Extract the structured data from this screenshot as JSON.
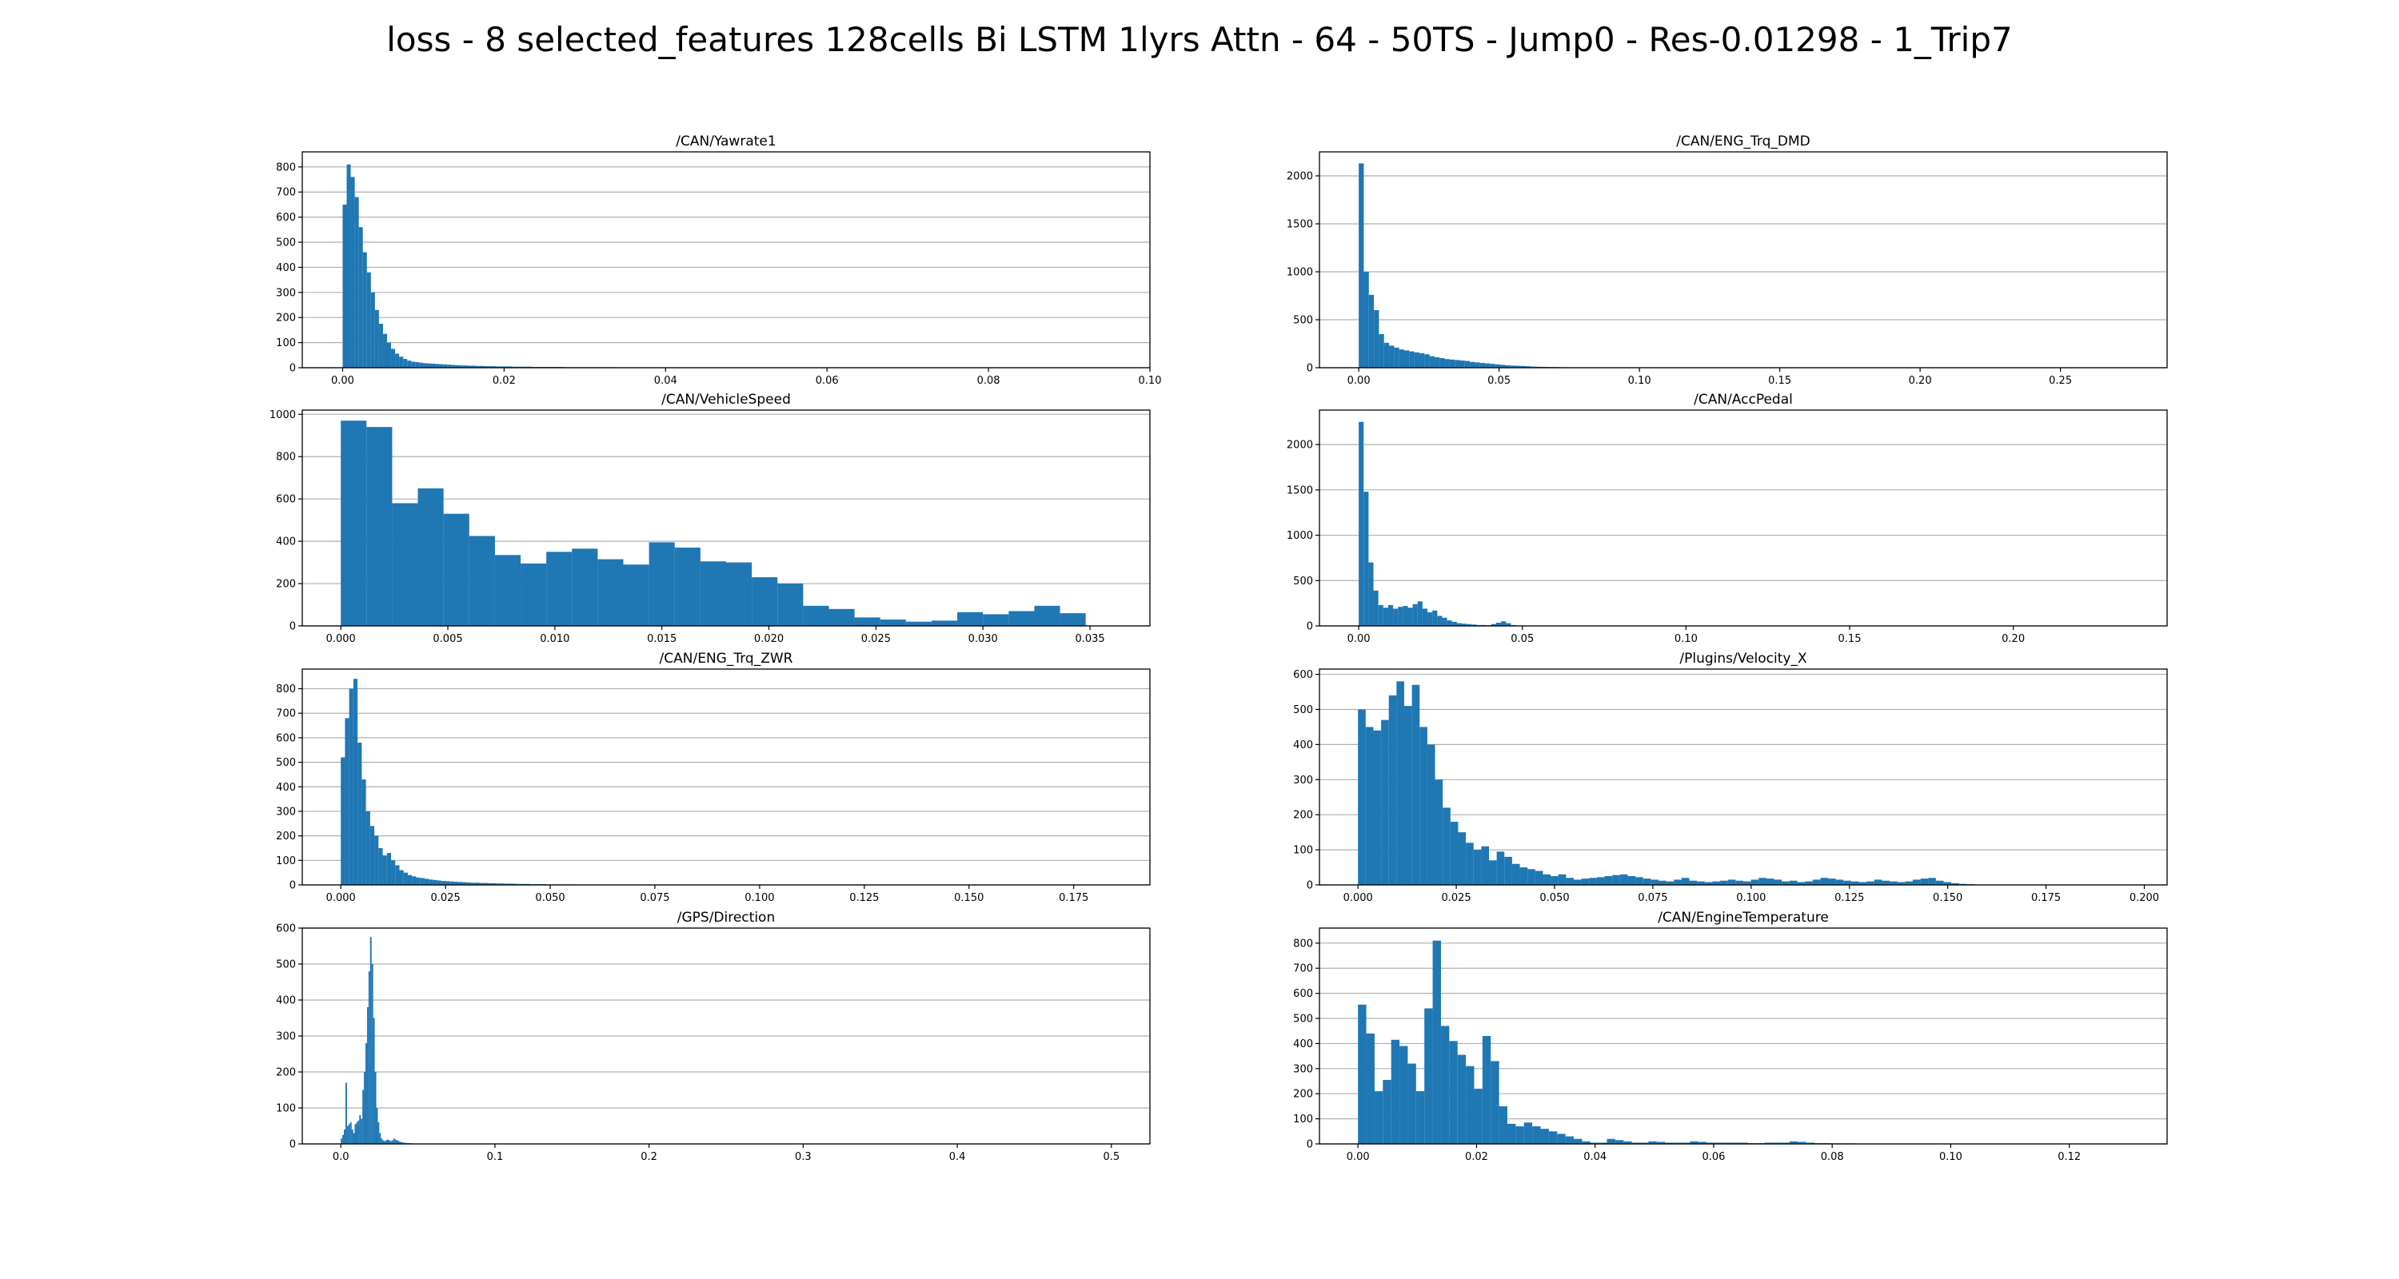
{
  "figure": {
    "title": "loss - 8 selected_features 128cells Bi LSTM 1lyrs Attn - 64 - 50TS - Jump0 - Res-0.01298 - 1_Trip7"
  },
  "colors": {
    "bar": "#1f77b4",
    "grid": "#b0b0b0",
    "axis": "#000000"
  },
  "chart_data": [
    {
      "type": "bar",
      "title": "/CAN/Yawrate1",
      "grid": "horizontal",
      "xlim": [
        -0.005,
        0.1
      ],
      "ylim": [
        0,
        860
      ],
      "xticks": [
        0.0,
        0.02,
        0.04,
        0.06,
        0.08,
        0.1
      ],
      "xtick_labels": [
        "0.00",
        "0.02",
        "0.04",
        "0.06",
        "0.08",
        "0.10"
      ],
      "yticks": [
        0,
        100,
        200,
        300,
        400,
        500,
        600,
        700,
        800
      ],
      "bin_start": 0.0,
      "bin_width": 0.0005,
      "values": [
        650,
        810,
        760,
        680,
        560,
        460,
        380,
        300,
        230,
        175,
        135,
        100,
        75,
        56,
        44,
        35,
        28,
        24,
        22,
        20,
        18,
        17,
        16,
        15,
        14,
        13,
        12,
        11,
        10,
        9,
        9,
        8,
        8,
        7,
        7,
        6,
        6,
        6,
        5,
        5,
        5,
        5,
        4,
        4,
        4,
        4,
        4,
        3,
        3,
        3,
        3,
        3,
        3,
        3,
        3,
        2,
        2,
        2,
        2,
        2,
        2,
        2,
        2,
        2,
        2,
        2,
        2,
        2,
        1,
        1,
        1,
        1,
        1,
        1,
        1,
        1,
        1,
        1,
        1,
        1,
        1,
        1,
        1,
        1,
        1,
        1,
        1,
        1,
        1,
        1,
        1,
        1,
        1,
        1,
        1,
        1,
        1,
        1,
        1,
        1,
        0,
        0,
        0,
        0,
        0,
        0,
        0,
        0,
        0,
        0,
        0,
        0,
        0,
        0,
        0,
        0,
        0,
        0,
        0,
        0,
        1,
        1,
        0,
        0,
        0,
        1,
        0,
        0,
        0,
        0,
        1,
        0,
        0,
        0,
        0,
        1
      ]
    },
    {
      "type": "bar",
      "title": "/CAN/ENG_Trq_DMD",
      "grid": "horizontal",
      "xlim": [
        -0.014,
        0.288
      ],
      "ylim": [
        0,
        2250
      ],
      "xticks": [
        0.0,
        0.05,
        0.1,
        0.15,
        0.2,
        0.25
      ],
      "xtick_labels": [
        "0.00",
        "0.05",
        "0.10",
        "0.15",
        "0.20",
        "0.25"
      ],
      "yticks": [
        0,
        500,
        1000,
        1500,
        2000
      ],
      "bin_start": 0.0,
      "bin_width": 0.0018,
      "values": [
        2130,
        1000,
        760,
        600,
        350,
        260,
        230,
        210,
        190,
        180,
        170,
        160,
        150,
        140,
        120,
        110,
        100,
        90,
        85,
        80,
        75,
        70,
        60,
        55,
        50,
        45,
        40,
        35,
        30,
        25,
        22,
        20,
        18,
        15,
        12,
        10,
        9,
        8,
        7,
        6,
        5,
        5,
        4,
        4,
        3,
        3,
        3,
        2,
        2,
        2,
        2,
        1,
        1,
        1,
        1,
        1,
        1,
        1,
        1,
        1
      ]
    },
    {
      "type": "bar",
      "title": "/CAN/VehicleSpeed",
      "grid": "horizontal",
      "xlim": [
        -0.0018,
        0.0378
      ],
      "ylim": [
        0,
        1020
      ],
      "xticks": [
        0.0,
        0.005,
        0.01,
        0.015,
        0.02,
        0.025,
        0.03,
        0.035
      ],
      "xtick_labels": [
        "0.000",
        "0.005",
        "0.010",
        "0.015",
        "0.020",
        "0.025",
        "0.030",
        "0.035"
      ],
      "yticks": [
        0,
        200,
        400,
        600,
        800,
        1000
      ],
      "bin_start": 0.0,
      "bin_width": 0.0012,
      "values": [
        970,
        940,
        580,
        650,
        530,
        425,
        335,
        295,
        350,
        365,
        315,
        290,
        395,
        370,
        305,
        300,
        230,
        200,
        95,
        80,
        40,
        30,
        20,
        25,
        65,
        55,
        70,
        95,
        60
      ]
    },
    {
      "type": "bar",
      "title": "/CAN/AccPedal",
      "grid": "horizontal",
      "xlim": [
        -0.012,
        0.247
      ],
      "ylim": [
        0,
        2380
      ],
      "xticks": [
        0.0,
        0.05,
        0.1,
        0.15,
        0.2
      ],
      "xtick_labels": [
        "0.00",
        "0.05",
        "0.10",
        "0.15",
        "0.20"
      ],
      "yticks": [
        0,
        500,
        1000,
        1500,
        2000
      ],
      "bin_start": 0.0,
      "bin_width": 0.0015,
      "values": [
        2250,
        1480,
        700,
        390,
        230,
        200,
        230,
        190,
        210,
        220,
        200,
        240,
        270,
        190,
        150,
        170,
        110,
        90,
        60,
        45,
        30,
        25,
        20,
        15,
        10,
        10,
        8,
        20,
        35,
        50,
        30,
        10,
        5,
        3,
        3,
        2,
        2,
        1,
        1,
        1
      ]
    },
    {
      "type": "bar",
      "title": "/CAN/ENG_Trq_ZWR",
      "grid": "horizontal",
      "xlim": [
        -0.0092,
        0.1932
      ],
      "ylim": [
        0,
        880
      ],
      "xticks": [
        0.0,
        0.025,
        0.05,
        0.075,
        0.1,
        0.125,
        0.15,
        0.175
      ],
      "xtick_labels": [
        "0.000",
        "0.025",
        "0.050",
        "0.075",
        "0.100",
        "0.125",
        "0.150",
        "0.175"
      ],
      "yticks": [
        0,
        100,
        200,
        300,
        400,
        500,
        600,
        700,
        800
      ],
      "bin_start": 0.0,
      "bin_width": 0.001,
      "values": [
        520,
        680,
        800,
        840,
        580,
        430,
        300,
        240,
        200,
        150,
        120,
        130,
        100,
        80,
        60,
        50,
        40,
        35,
        30,
        28,
        25,
        22,
        20,
        18,
        16,
        15,
        14,
        13,
        12,
        11,
        10,
        9,
        9,
        8,
        8,
        7,
        7,
        6,
        6,
        5,
        5,
        5,
        4,
        4,
        4,
        3,
        3,
        3,
        3,
        2,
        2,
        2,
        2,
        2,
        2,
        2,
        1,
        1,
        1,
        1,
        1,
        1,
        1,
        1,
        1,
        1,
        1,
        1,
        1,
        1,
        1,
        1,
        1,
        1,
        1,
        1,
        1,
        1,
        1,
        1
      ]
    },
    {
      "type": "bar",
      "title": "/Plugins/Velocity_X",
      "grid": "horizontal",
      "xlim": [
        -0.0098,
        0.2058
      ],
      "ylim": [
        0,
        615
      ],
      "xticks": [
        0.0,
        0.025,
        0.05,
        0.075,
        0.1,
        0.125,
        0.15,
        0.175,
        0.2
      ],
      "xtick_labels": [
        "0.000",
        "0.025",
        "0.050",
        "0.075",
        "0.100",
        "0.125",
        "0.150",
        "0.175",
        "0.200"
      ],
      "yticks": [
        0,
        100,
        200,
        300,
        400,
        500,
        600
      ],
      "bin_start": 0.0,
      "bin_width": 0.00196,
      "values": [
        500,
        450,
        440,
        470,
        540,
        580,
        510,
        570,
        450,
        400,
        300,
        220,
        180,
        150,
        120,
        100,
        110,
        70,
        95,
        80,
        60,
        50,
        45,
        40,
        30,
        25,
        30,
        20,
        15,
        18,
        20,
        22,
        25,
        28,
        30,
        25,
        22,
        18,
        15,
        12,
        10,
        15,
        20,
        12,
        10,
        8,
        10,
        12,
        15,
        12,
        10,
        15,
        20,
        18,
        15,
        10,
        12,
        8,
        10,
        15,
        20,
        18,
        15,
        12,
        10,
        8,
        10,
        15,
        12,
        10,
        8,
        10,
        15,
        18,
        20,
        12,
        8,
        5,
        3,
        2
      ]
    },
    {
      "type": "bar",
      "title": "/GPS/Direction",
      "grid": "horizontal",
      "xlim": [
        -0.025,
        0.525
      ],
      "ylim": [
        0,
        600
      ],
      "xticks": [
        0.0,
        0.1,
        0.2,
        0.3,
        0.4,
        0.5
      ],
      "xtick_labels": [
        "0.0",
        "0.1",
        "0.2",
        "0.3",
        "0.4",
        "0.5"
      ],
      "yticks": [
        0,
        100,
        200,
        300,
        400,
        500,
        600
      ],
      "bin_start": 0.0,
      "bin_width": 0.001,
      "values": [
        15,
        25,
        40,
        170,
        50,
        55,
        60,
        40,
        30,
        55,
        60,
        65,
        80,
        70,
        150,
        200,
        280,
        380,
        480,
        575,
        500,
        350,
        200,
        100,
        60,
        30,
        15,
        10,
        8,
        10,
        12,
        10,
        8,
        10,
        15,
        12,
        10,
        8,
        6,
        5,
        4,
        3,
        3,
        2,
        2,
        2,
        1,
        1,
        1,
        1
      ]
    },
    {
      "type": "bar",
      "title": "/CAN/EngineTemperature",
      "grid": "horizontal",
      "xlim": [
        -0.0065,
        0.1365
      ],
      "ylim": [
        0,
        860
      ],
      "xticks": [
        0.0,
        0.02,
        0.04,
        0.06,
        0.08,
        0.1,
        0.12
      ],
      "xtick_labels": [
        "0.00",
        "0.02",
        "0.04",
        "0.06",
        "0.08",
        "0.10",
        "0.12"
      ],
      "yticks": [
        0,
        100,
        200,
        300,
        400,
        500,
        600,
        700,
        800
      ],
      "bin_start": 0.0,
      "bin_width": 0.0014,
      "values": [
        555,
        440,
        210,
        255,
        415,
        390,
        320,
        210,
        540,
        810,
        470,
        410,
        355,
        310,
        220,
        430,
        330,
        150,
        80,
        70,
        85,
        70,
        60,
        50,
        40,
        30,
        20,
        10,
        5,
        5,
        20,
        15,
        10,
        5,
        5,
        10,
        8,
        5,
        5,
        5,
        10,
        8,
        5,
        5,
        5,
        5,
        5,
        3,
        3,
        5,
        5,
        5,
        10,
        8,
        5,
        3,
        3,
        2,
        2,
        2
      ]
    }
  ]
}
